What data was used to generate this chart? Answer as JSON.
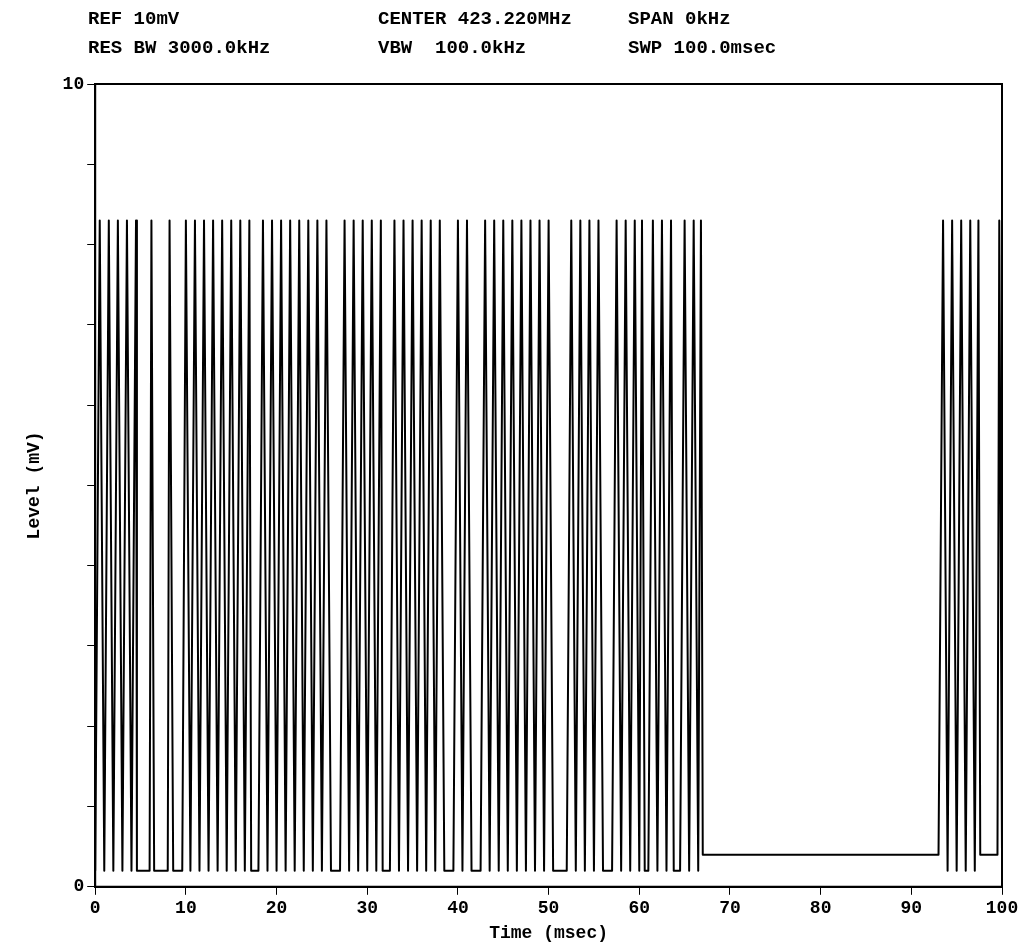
{
  "chart_data": {
    "type": "line",
    "xlabel": "Time (msec)",
    "ylabel": "Level (mV)",
    "annotations": [
      "REF 10mV",
      "CENTER 423.220MHz",
      "SPAN 0kHz",
      "RES BW 3000.0kHz",
      "VBW  100.0kHz",
      "SWP 100.0msec"
    ],
    "xlim": [
      0,
      100
    ],
    "xticks": [
      0,
      10,
      20,
      30,
      40,
      50,
      60,
      70,
      80,
      90,
      100
    ],
    "ylim": [
      0,
      10
    ],
    "yticks": [
      0,
      {
        "value": 1,
        "label": null
      },
      {
        "value": 2,
        "label": null
      },
      {
        "value": 3,
        "label": null
      },
      {
        "value": 4,
        "label": null
      },
      {
        "value": 5,
        "label": null
      },
      {
        "value": 6,
        "label": null
      },
      {
        "value": 7,
        "label": null
      },
      {
        "value": 8,
        "label": null
      },
      {
        "value": 9,
        "label": null
      },
      10
    ],
    "grid": false,
    "legend": false,
    "marker": "none",
    "line_style": "solid",
    "series": [
      {
        "color": "#000000",
        "x": [
          0,
          0.5,
          1,
          1.5,
          2,
          2.5,
          3,
          3.5,
          4,
          4.5,
          4.6,
          6,
          6.2,
          6.5,
          8,
          8.2,
          8.6,
          9.6,
          10,
          10.5,
          11,
          11.5,
          12,
          12.5,
          13,
          13.5,
          14,
          14.5,
          15,
          15.5,
          16,
          16.5,
          17,
          17.2,
          18,
          18.5,
          19,
          19.5,
          20,
          20.5,
          21,
          21.5,
          22,
          22.5,
          23,
          23.5,
          24,
          24.5,
          25,
          25.5,
          26,
          27,
          27.5,
          28,
          28.5,
          29,
          29.5,
          30,
          30.5,
          31,
          31.5,
          31.7,
          32.5,
          33,
          33.5,
          34,
          34.5,
          35,
          35.5,
          36,
          36.5,
          37,
          37.5,
          38,
          38.5,
          39.5,
          40,
          40.5,
          41,
          41.5,
          42.5,
          43,
          43.5,
          44,
          44.5,
          45,
          45.5,
          46,
          46.5,
          47,
          47.5,
          48,
          48.5,
          49,
          49.5,
          50,
          50.5,
          52,
          52.5,
          53,
          53.5,
          54,
          54.5,
          55,
          55.5,
          56,
          57,
          57.5,
          58,
          58.5,
          59,
          59.5,
          60,
          60.3,
          60.6,
          61,
          61.5,
          62,
          62.5,
          63,
          63.5,
          63.8,
          64.5,
          65,
          65.5,
          66,
          66.5,
          66.8,
          67,
          80,
          93,
          93.5,
          94,
          94.5,
          95,
          95.5,
          96,
          96.5,
          97,
          97.4,
          97.6,
          99.5,
          99.7,
          100
        ],
        "values": [
          0.2,
          8.3,
          0.2,
          8.3,
          0.2,
          8.3,
          0.2,
          8.3,
          0.2,
          8.3,
          0.2,
          0.2,
          8.3,
          0.2,
          0.2,
          8.3,
          0.2,
          0.2,
          8.3,
          0.2,
          8.3,
          0.2,
          8.3,
          0.2,
          8.3,
          0.2,
          8.3,
          0.2,
          8.3,
          0.2,
          8.3,
          0.2,
          8.3,
          0.2,
          0.2,
          8.3,
          0.2,
          8.3,
          0.2,
          8.3,
          0.2,
          8.3,
          0.2,
          8.3,
          0.2,
          8.3,
          0.2,
          8.3,
          0.2,
          8.3,
          0.2,
          0.2,
          8.3,
          0.2,
          8.3,
          0.2,
          8.3,
          0.2,
          8.3,
          0.2,
          8.3,
          0.2,
          0.2,
          8.3,
          0.2,
          8.3,
          0.2,
          8.3,
          0.2,
          8.3,
          0.2,
          8.3,
          0.2,
          8.3,
          0.2,
          0.2,
          8.3,
          0.2,
          8.3,
          0.2,
          0.2,
          8.3,
          0.2,
          8.3,
          0.2,
          8.3,
          0.2,
          8.3,
          0.2,
          8.3,
          0.2,
          8.3,
          0.2,
          8.3,
          0.2,
          8.3,
          0.2,
          0.2,
          8.3,
          0.2,
          8.3,
          0.2,
          8.3,
          0.2,
          8.3,
          0.2,
          0.2,
          8.3,
          0.2,
          8.3,
          0.2,
          8.3,
          0.2,
          8.3,
          0.2,
          0.2,
          8.3,
          0.2,
          8.3,
          0.2,
          8.3,
          0.2,
          0.2,
          8.3,
          0.2,
          8.3,
          0.2,
          8.3,
          0.4,
          0.4,
          0.4,
          8.3,
          0.2,
          8.3,
          0.2,
          8.3,
          0.2,
          8.3,
          0.2,
          8.3,
          0.4,
          0.4,
          8.3,
          0.4
        ]
      }
    ]
  }
}
